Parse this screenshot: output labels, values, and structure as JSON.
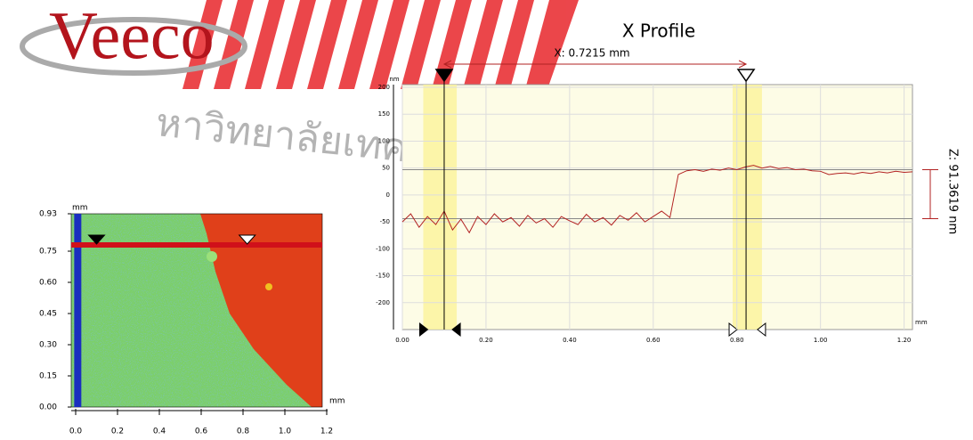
{
  "logo": "Veeco",
  "watermark": "หาวิทยาลัยเทคโนโลยีสุรนา",
  "chart_data": [
    {
      "type": "heatmap",
      "y_unit": "mm",
      "x_unit": "mm",
      "xlim": [
        0,
        1.2
      ],
      "ylim": [
        0,
        0.93
      ],
      "xticks": [
        {
          "value": 0,
          "label": "0.0"
        },
        0.2,
        0.4,
        0.6,
        0.8,
        {
          "value": 1,
          "label": "1.0"
        },
        1.2
      ],
      "yticks": [
        {
          "value": 0,
          "label": "0.00"
        },
        0.15,
        {
          "value": 0.3,
          "label": "0.30"
        },
        0.45,
        {
          "value": 0.6,
          "label": "0.60"
        },
        0.75,
        0.93
      ],
      "cursor_y": 0.78,
      "cursor_x": 0.01,
      "cursors": [
        0.1,
        0.82
      ]
    },
    {
      "type": "line",
      "title": "X Profile",
      "annotation": "X: 0.7215 mm",
      "z_annotation": "Z: 91.3619 nm",
      "y_unit": "nm",
      "x_unit": "mm",
      "xlim": [
        0,
        1.22
      ],
      "ylim": [
        -250,
        205
      ],
      "xticks": [
        {
          "value": 0,
          "label": "0.00"
        },
        {
          "value": 0.2,
          "label": "0.20"
        },
        {
          "value": 0.4,
          "label": "0.40"
        },
        {
          "value": 0.6,
          "label": "0.60"
        },
        {
          "value": 0.8,
          "label": "0.80"
        },
        {
          "value": 1,
          "label": "1.00"
        },
        {
          "value": 1.2,
          "label": "1.20"
        }
      ],
      "yticks": [
        200,
        150,
        100,
        50,
        0,
        -50,
        -100,
        -150,
        -200
      ],
      "x": [
        0,
        0.02,
        0.04,
        0.06,
        0.08,
        0.1,
        0.12,
        0.14,
        0.16,
        0.18,
        0.2,
        0.22,
        0.24,
        0.26,
        0.28,
        0.3,
        0.32,
        0.34,
        0.36,
        0.38,
        0.4,
        0.42,
        0.44,
        0.46,
        0.48,
        0.5,
        0.52,
        0.54,
        0.56,
        0.58,
        0.6,
        0.62,
        0.64,
        0.66,
        0.68,
        0.7,
        0.72,
        0.74,
        0.76,
        0.78,
        0.8,
        0.82,
        0.84,
        0.86,
        0.88,
        0.9,
        0.92,
        0.94,
        0.96,
        0.98,
        1,
        1.02,
        1.04,
        1.06,
        1.08,
        1.1,
        1.12,
        1.14,
        1.16,
        1.18,
        1.2,
        1.22
      ],
      "series": [
        {
          "color": "#b22222",
          "values": [
            -50,
            -35,
            -60,
            -40,
            -55,
            -30,
            -65,
            -45,
            -70,
            -40,
            -55,
            -35,
            -50,
            -42,
            -58,
            -38,
            -52,
            -44,
            -60,
            -40,
            -48,
            -55,
            -36,
            -50,
            -42,
            -56,
            -38,
            -47,
            -33,
            -50,
            -40,
            -30,
            -42,
            38,
            45,
            47,
            44,
            48,
            46,
            50,
            47,
            52,
            55,
            50,
            53,
            49,
            51,
            47,
            48,
            45,
            44,
            38,
            40,
            41,
            39,
            42,
            40,
            43,
            41,
            44,
            42,
            43
          ]
        }
      ],
      "cursors": [
        0.1,
        0.822
      ],
      "bands": [
        [
          0.05,
          0.13
        ],
        [
          0.79,
          0.86
        ]
      ],
      "ref_lines": [
        47,
        -44
      ]
    }
  ]
}
